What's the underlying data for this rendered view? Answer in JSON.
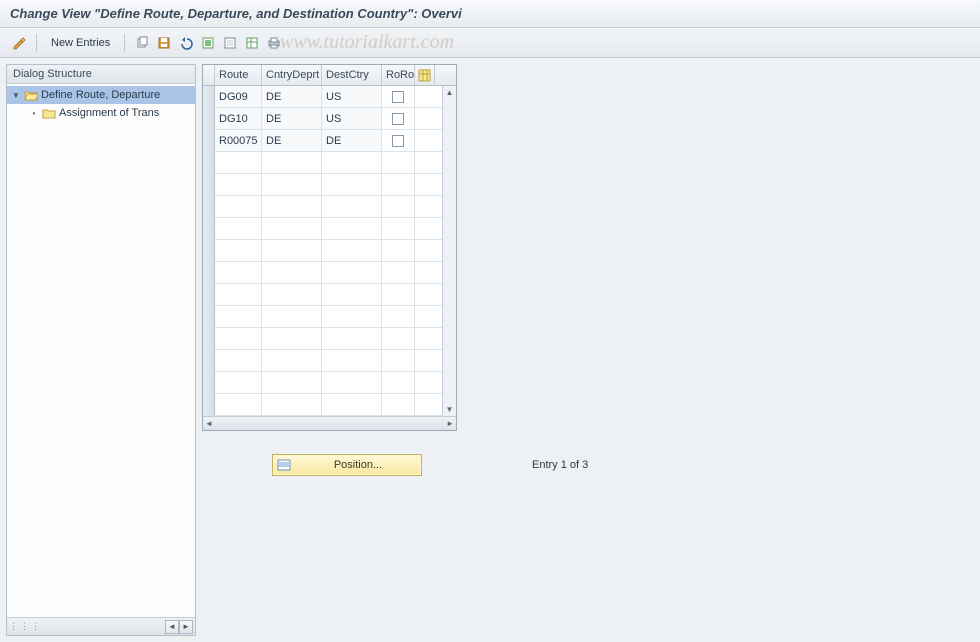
{
  "title": "Change View \"Define Route, Departure, and Destination Country\": Overvi",
  "toolbar": {
    "new_entries": "New Entries"
  },
  "watermark": "www.tutorialkart.com",
  "tree": {
    "header": "Dialog Structure",
    "items": [
      {
        "label": "Define Route, Departure",
        "selected": true,
        "indent": 0,
        "open": true
      },
      {
        "label": "Assignment of Trans",
        "selected": false,
        "indent": 1,
        "open": false
      }
    ]
  },
  "table": {
    "columns": {
      "route": "Route",
      "cntrydeprt": "CntryDeprt",
      "destctry": "DestCtry",
      "roro": "RoRo"
    },
    "rows": [
      {
        "route": "DG09",
        "cntrydeprt": "DE",
        "destctry": "US",
        "roro": false
      },
      {
        "route": "DG10",
        "cntrydeprt": "DE",
        "destctry": "US",
        "roro": false
      },
      {
        "route": "R00075",
        "cntrydeprt": "DE",
        "destctry": "DE",
        "roro": false
      }
    ],
    "empty_rows": 12
  },
  "position_button": "Position...",
  "entry_status": "Entry 1 of 3",
  "colors": {
    "bg": "#eef1f4",
    "border": "#b5c0cb",
    "header_grad_top": "#f5f8fa",
    "header_grad_bot": "#e5eaef",
    "selected_row": "#aac4e8",
    "btn_grad_top": "#fff8d8",
    "btn_grad_bot": "#f7e9a0"
  }
}
